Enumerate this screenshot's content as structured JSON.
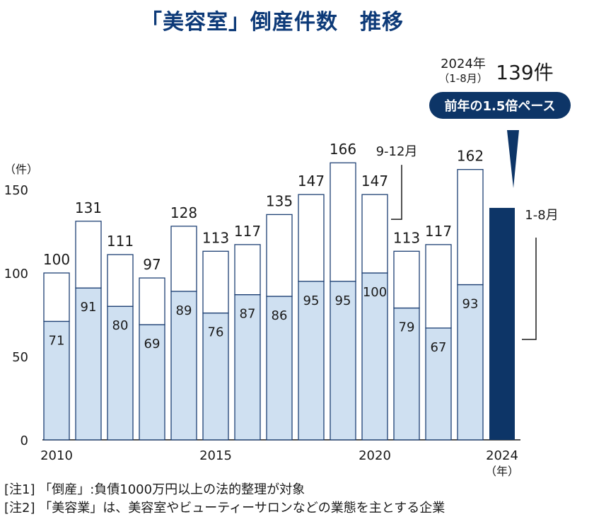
{
  "title": "「美容室」倒産件数　推移",
  "unit_label": "（件）",
  "year_unit_label": "（年）",
  "bracket_label_2020": "9-12月",
  "bracket_label_2024": "1-8月",
  "callout": {
    "year_label": "2024年",
    "period_label": "（1-8月）",
    "value_label": "139件",
    "badge_text": "前年の1.5倍ペース"
  },
  "notes": [
    "[注1] 「倒産」:負債1000万円以上の法的整理が対象",
    "[注2] 「美容業」は、美容室やビューティーサロンなどの業態を主とする企業"
  ],
  "colors": {
    "title": "#0d3a78",
    "bar_lower_fill": "#cfe0f1",
    "bar_upper_fill": "#ffffff",
    "bar_stroke": "#1c3f73",
    "highlight_bar": "#0d3567",
    "badge": "#0d3567"
  },
  "chart_data": {
    "type": "bar",
    "stacked": true,
    "categories": [
      "2010",
      "2011",
      "2012",
      "2013",
      "2014",
      "2015",
      "2016",
      "2017",
      "2018",
      "2019",
      "2020",
      "2021",
      "2022",
      "2023",
      "2024"
    ],
    "x_tick_labels": [
      "2010",
      "2015",
      "2020",
      "2024"
    ],
    "y_ticks": [
      0,
      50,
      100,
      150
    ],
    "ylim": [
      0,
      150
    ],
    "series": [
      {
        "values": [
          71,
          91,
          80,
          69,
          89,
          76,
          87,
          86,
          95,
          95,
          100,
          79,
          67,
          93,
          139
        ]
      },
      {
        "values": [
          29,
          40,
          31,
          28,
          39,
          37,
          30,
          49,
          52,
          71,
          47,
          34,
          50,
          69,
          null
        ]
      }
    ],
    "totals": [
      100,
      131,
      111,
      97,
      128,
      113,
      117,
      135,
      147,
      166,
      147,
      113,
      117,
      162,
      139
    ]
  }
}
